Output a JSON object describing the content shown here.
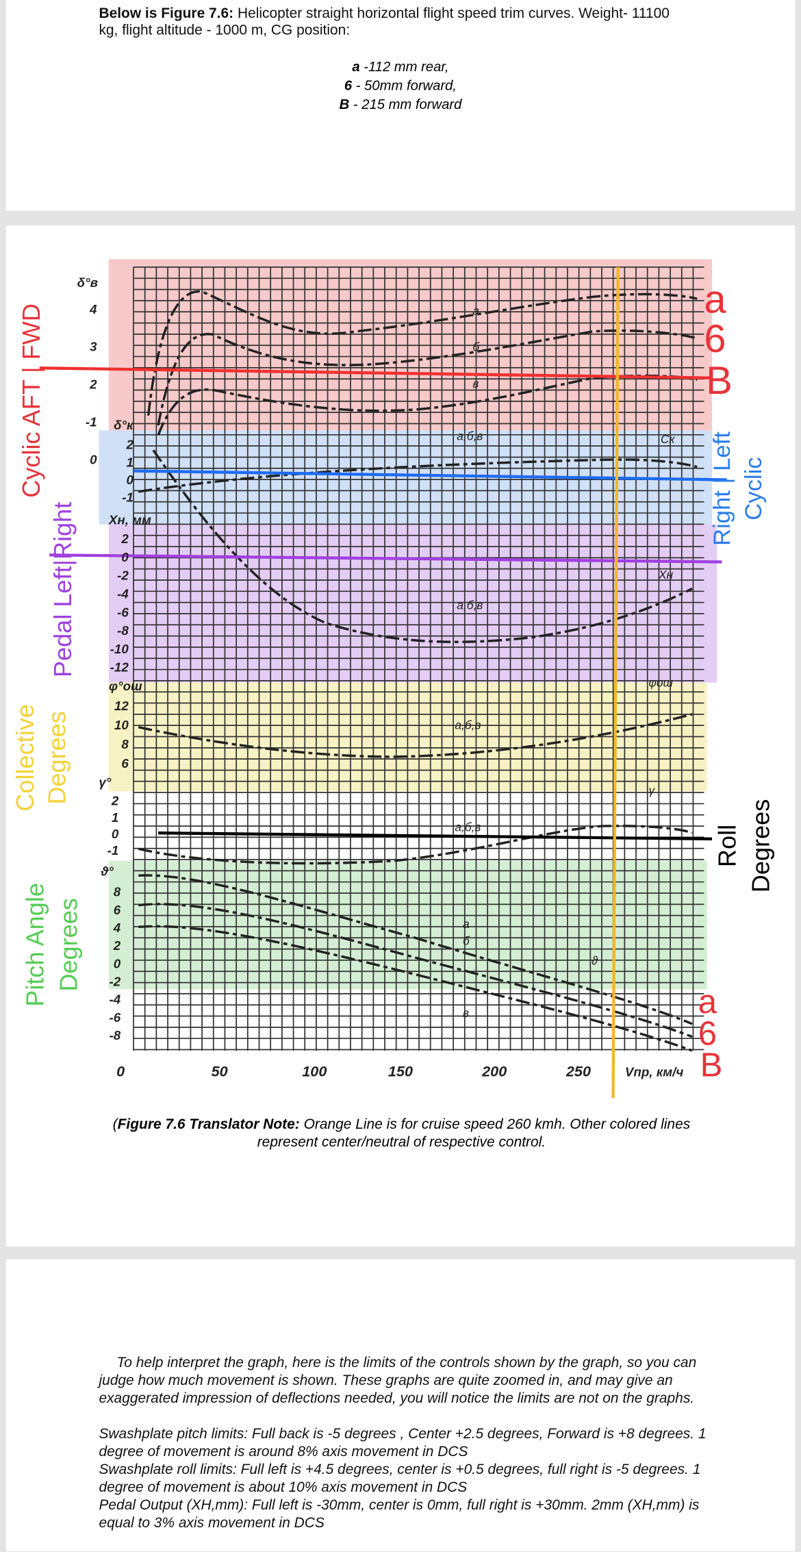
{
  "panel1": {
    "intro_bold": "Below is Figure 7.6:",
    "intro_text": " Helicopter straight horizontal flight speed trim curves. Weight- 11100 kg, flight altitude - 1000 m, CG position:",
    "cg": [
      {
        "key": "a",
        "text": " -112 mm rear,"
      },
      {
        "key": "6",
        "text": " - 50mm forward,"
      },
      {
        "key": "B",
        "text": " - 215 mm forward"
      }
    ]
  },
  "figure": {
    "x_ticks": [
      "0",
      "50",
      "100",
      "150",
      "200",
      "250"
    ],
    "x_label": "Vпр, км/ч",
    "y_groups": [
      {
        "title": "δ°в",
        "labels": [
          "4",
          "3",
          "2",
          "-1",
          "0"
        ]
      },
      {
        "title": "δ°к",
        "labels": [
          "2",
          "1",
          "0",
          "-1"
        ]
      },
      {
        "title": "Хн, мм",
        "labels": [
          "2",
          "0",
          "-2",
          "-4",
          "-6",
          "-8",
          "-10",
          "-12"
        ]
      },
      {
        "title": "φ°ош",
        "labels": [
          "12",
          "10",
          "8",
          "6"
        ]
      },
      {
        "title": "γ°",
        "labels": [
          "2",
          "1",
          "0",
          "-1"
        ]
      },
      {
        "title": "ϑ°",
        "labels": [
          "8",
          "6",
          "4",
          "2",
          "0",
          "-2",
          "-4",
          "-6",
          "-8"
        ]
      }
    ],
    "curve_labels": [
      "а",
      "б",
      "в",
      "а,б,в",
      "Cк",
      "а,б,в",
      "Хн",
      "а,б,в",
      "φош",
      "а,б,в",
      "γ",
      "а",
      "б",
      "в",
      "ϑ"
    ],
    "right_top": [
      "a",
      "6",
      "B"
    ],
    "right_bottom": [
      "a",
      "6",
      "B"
    ],
    "cyclic_long": "Cyclic AFT | FWD",
    "cyclic_lat": [
      "Right | Left",
      "Cyclic"
    ],
    "pedal": "Pedal Left|Right",
    "collective": [
      "Collective",
      "Degrees"
    ],
    "roll": [
      "Roll",
      "Degrees"
    ],
    "pitch": [
      "Pitch Angle",
      "Degrees"
    ]
  },
  "caption": {
    "open": "(",
    "bold": "Figure 7.6 Translator Note:",
    "text": " Orange Line is for cruise speed 260 kmh. Other colored lines represent center/neutral of respective control."
  },
  "notes": {
    "intro": "To help interpret the graph, here is the limits of the controls shown by the graph, so you can judge how much movement is shown. These graphs are quite zoomed in, and may give an exaggerated impression of deflections needed, you will notice the limits are not on the graphs.",
    "limits": [
      "Swashplate pitch limits: Full back is -5 degrees , Center +2.5 degrees, Forward is +8 degrees. 1 degree of movement is around  8% axis movement in DCS",
      "Swashplate roll limits: Full left is +4.5 degrees, center is +0.5 degrees, full right is -5 degrees. 1 degree of movement is about 10% axis movement in DCS",
      "Pedal Output (XH,mm): Full left is -30mm, center is 0mm, full right is +30mm. 2mm (XH,mm) is equal to 3% axis movement in DCS"
    ]
  }
}
